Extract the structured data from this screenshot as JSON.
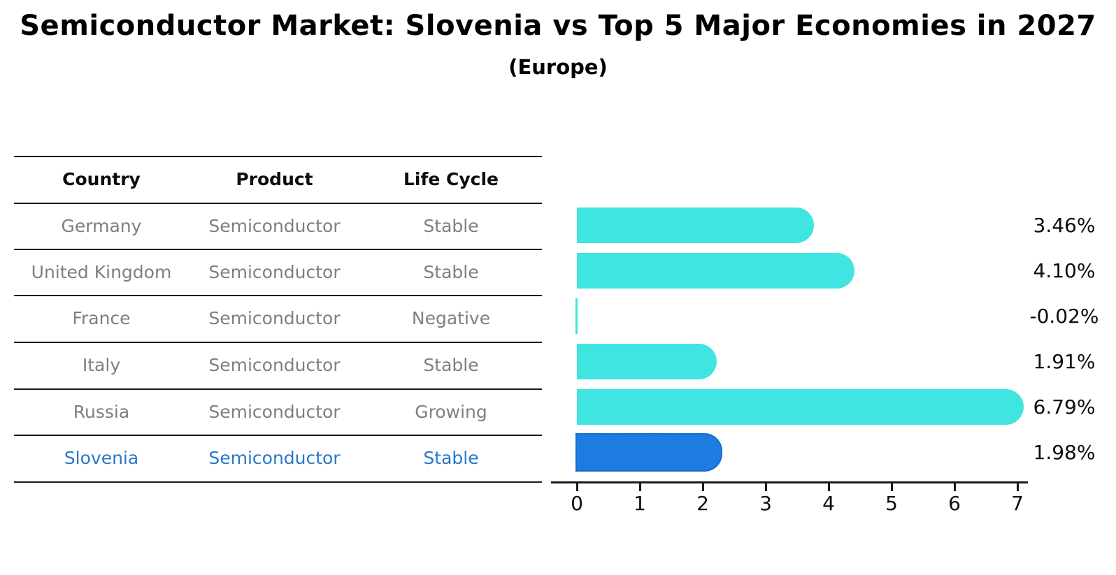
{
  "title": "Semiconductor Market: Slovenia vs Top 5 Major Economies in 2027",
  "subtitle": "(Europe)",
  "table": {
    "headers": [
      "Country",
      "Product",
      "Life Cycle"
    ],
    "rows": [
      {
        "country": "Germany",
        "product": "Semiconductor",
        "life_cycle": "Stable",
        "highlight": false
      },
      {
        "country": "United Kingdom",
        "product": "Semiconductor",
        "life_cycle": "Stable",
        "highlight": false
      },
      {
        "country": "France",
        "product": "Semiconductor",
        "life_cycle": "Negative",
        "highlight": false
      },
      {
        "country": "Italy",
        "product": "Semiconductor",
        "life_cycle": "Stable",
        "highlight": false
      },
      {
        "country": "Russia",
        "product": "Semiconductor",
        "life_cycle": "Growing",
        "highlight": false
      },
      {
        "country": "Slovenia",
        "product": "Semiconductor",
        "life_cycle": "Stable",
        "highlight": true
      }
    ]
  },
  "chart_data": {
    "type": "bar",
    "orientation": "horizontal",
    "title": "Semiconductor Market: Slovenia vs Top 5 Major Economies in 2027",
    "subtitle": "(Europe)",
    "categories": [
      "Germany",
      "United Kingdom",
      "France",
      "Italy",
      "Russia",
      "Slovenia"
    ],
    "values": [
      3.46,
      4.1,
      -0.02,
      1.91,
      6.79,
      1.98
    ],
    "value_labels": [
      "3.46%",
      "4.10%",
      "-0.02%",
      "1.91%",
      "6.79%",
      "1.98%"
    ],
    "xlabel": "",
    "ylabel": "",
    "xlim": [
      0,
      7
    ],
    "x_ticks": [
      "0",
      "1",
      "2",
      "3",
      "4",
      "5",
      "6",
      "7"
    ],
    "grid": false,
    "legend": false,
    "bar_color": "#40e4e0",
    "highlight_color": "#1e7ce0",
    "highlight_index": 5
  },
  "colors": {
    "bar_cyan": "#40e4e0",
    "bar_blue": "#1e7ce0",
    "highlight_text_blue": "#2878cb",
    "table_text_gray": "#7f7f7f",
    "text_black": "#0d0d0d"
  }
}
